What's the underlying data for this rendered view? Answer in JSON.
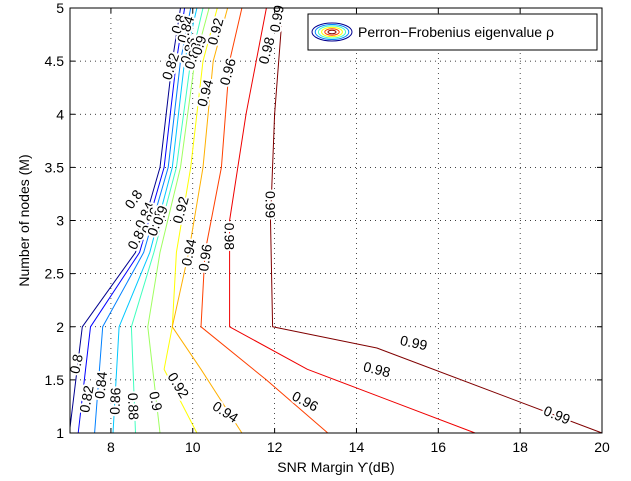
{
  "chart_data": {
    "type": "contour",
    "xlabel": "SNR Margin ϒ(dB)",
    "ylabel": "Number of nodes (M)",
    "xlim": [
      7,
      20
    ],
    "ylim": [
      1,
      5
    ],
    "x_ticks": [
      8,
      10,
      12,
      14,
      16,
      18,
      20
    ],
    "y_ticks": [
      1,
      1.5,
      2,
      2.5,
      3,
      3.5,
      4,
      4.5,
      5
    ],
    "grid": true,
    "legend": {
      "position": "top-right",
      "entries": [
        "Perron−Frobenius eigenvalue ρ"
      ]
    },
    "series": [
      {
        "level": 0.8,
        "color": "#00008f",
        "points": [
          [
            7.0,
            1.05
          ],
          [
            7.3,
            2.0
          ],
          [
            8.6,
            2.7
          ],
          [
            9.2,
            3.5
          ],
          [
            9.5,
            4.5
          ],
          [
            9.7,
            5.0
          ]
        ]
      },
      {
        "level": 0.82,
        "color": "#0000ff",
        "points": [
          [
            7.2,
            1.0
          ],
          [
            7.5,
            2.0
          ],
          [
            8.7,
            2.7
          ],
          [
            9.3,
            3.5
          ],
          [
            9.6,
            4.5
          ],
          [
            9.8,
            5.0
          ]
        ]
      },
      {
        "level": 0.84,
        "color": "#0080ff",
        "points": [
          [
            7.6,
            1.0
          ],
          [
            7.8,
            2.0
          ],
          [
            8.8,
            2.7
          ],
          [
            9.4,
            3.5
          ],
          [
            9.7,
            4.5
          ],
          [
            9.95,
            5.0
          ]
        ]
      },
      {
        "level": 0.86,
        "color": "#00c8ff",
        "points": [
          [
            8.05,
            1.0
          ],
          [
            8.2,
            2.0
          ],
          [
            8.95,
            2.7
          ],
          [
            9.5,
            3.5
          ],
          [
            9.8,
            4.5
          ],
          [
            10.1,
            5.0
          ]
        ]
      },
      {
        "level": 0.88,
        "color": "#40ffbf",
        "points": [
          [
            8.6,
            1.0
          ],
          [
            8.5,
            2.0
          ],
          [
            9.05,
            2.7
          ],
          [
            9.6,
            3.5
          ],
          [
            9.95,
            4.5
          ],
          [
            10.25,
            5.0
          ]
        ]
      },
      {
        "level": 0.9,
        "color": "#9fff60",
        "points": [
          [
            9.2,
            1.0
          ],
          [
            8.9,
            2.0
          ],
          [
            9.2,
            2.7
          ],
          [
            9.7,
            3.5
          ],
          [
            10.05,
            4.5
          ],
          [
            10.4,
            5.0
          ]
        ]
      },
      {
        "level": 0.92,
        "color": "#ffff00",
        "points": [
          [
            10.1,
            1.0
          ],
          [
            9.3,
            1.6
          ],
          [
            9.5,
            2.0
          ],
          [
            9.6,
            2.7
          ],
          [
            9.95,
            3.5
          ],
          [
            10.25,
            4.5
          ],
          [
            10.6,
            5.0
          ]
        ]
      },
      {
        "level": 0.94,
        "color": "#ffb000",
        "points": [
          [
            11.2,
            1.0
          ],
          [
            10.2,
            1.6
          ],
          [
            9.5,
            2.0
          ],
          [
            9.9,
            2.7
          ],
          [
            10.25,
            3.5
          ],
          [
            10.5,
            4.5
          ],
          [
            10.85,
            5.0
          ]
        ]
      },
      {
        "level": 0.96,
        "color": "#ff4000",
        "points": [
          [
            13.3,
            1.0
          ],
          [
            11.8,
            1.5
          ],
          [
            10.2,
            2.0
          ],
          [
            10.3,
            2.7
          ],
          [
            10.7,
            3.5
          ],
          [
            10.9,
            4.5
          ],
          [
            11.2,
            5.0
          ]
        ]
      },
      {
        "level": 0.98,
        "color": "#ef0000",
        "points": [
          [
            16.9,
            1.0
          ],
          [
            12.8,
            1.6
          ],
          [
            10.9,
            2.0
          ],
          [
            10.9,
            3.0
          ],
          [
            11.3,
            4.0
          ],
          [
            11.8,
            5.0
          ]
        ]
      },
      {
        "level": 0.99,
        "color": "#800000",
        "points": [
          [
            20.0,
            1.0
          ],
          [
            14.5,
            1.8
          ],
          [
            11.95,
            2.0
          ],
          [
            11.9,
            3.0
          ],
          [
            12.0,
            4.0
          ],
          [
            12.2,
            5.0
          ]
        ]
      }
    ],
    "labels": [
      {
        "text": "0.8",
        "x": 7.15,
        "y": 1.65,
        "rot": -78
      },
      {
        "text": "0.82",
        "x": 7.4,
        "y": 1.32,
        "rot": -80
      },
      {
        "text": "0.84",
        "x": 7.75,
        "y": 1.45,
        "rot": -84
      },
      {
        "text": "0.86",
        "x": 8.1,
        "y": 1.3,
        "rot": -88
      },
      {
        "text": "0.88",
        "x": 8.55,
        "y": 1.25,
        "rot": 88
      },
      {
        "text": "0.9",
        "x": 9.1,
        "y": 1.3,
        "rot": 78
      },
      {
        "text": "0.92",
        "x": 9.65,
        "y": 1.45,
        "rot": 58
      },
      {
        "text": "0.94",
        "x": 10.8,
        "y": 1.2,
        "rot": 33
      },
      {
        "text": "0.96",
        "x": 12.75,
        "y": 1.3,
        "rot": 28
      },
      {
        "text": "0.98",
        "x": 14.5,
        "y": 1.6,
        "rot": 14
      },
      {
        "text": "0.99",
        "x": 15.4,
        "y": 1.85,
        "rot": 12
      },
      {
        "text": "0.99",
        "x": 18.9,
        "y": 1.17,
        "rot": 22
      },
      {
        "text": "0.8",
        "x": 8.55,
        "y": 3.2,
        "rot": -55
      },
      {
        "text": "0.82",
        "x": 8.65,
        "y": 2.85,
        "rot": -62
      },
      {
        "text": "0.84",
        "x": 8.82,
        "y": 3.05,
        "rot": -65
      },
      {
        "text": "0.86",
        "x": 8.97,
        "y": 3.0,
        "rot": -68
      },
      {
        "text": "0.88",
        "x": 9.1,
        "y": 2.98,
        "rot": -70
      },
      {
        "text": "0.9",
        "x": 9.2,
        "y": 3.05,
        "rot": -70
      },
      {
        "text": "0.92",
        "x": 9.7,
        "y": 3.1,
        "rot": -75
      },
      {
        "text": "0.94",
        "x": 9.9,
        "y": 2.7,
        "rot": -78
      },
      {
        "text": "0.96",
        "x": 10.3,
        "y": 2.65,
        "rot": -82
      },
      {
        "text": "0.98",
        "x": 10.9,
        "y": 2.85,
        "rot": 90
      },
      {
        "text": "0.99",
        "x": 11.9,
        "y": 3.15,
        "rot": 90
      },
      {
        "text": "0.8",
        "x": 9.65,
        "y": 4.85,
        "rot": -72
      },
      {
        "text": "0.82",
        "x": 9.45,
        "y": 4.45,
        "rot": -72
      },
      {
        "text": "0.84",
        "x": 9.82,
        "y": 4.8,
        "rot": -72
      },
      {
        "text": "0.86",
        "x": 9.9,
        "y": 4.6,
        "rot": -72
      },
      {
        "text": "0.88",
        "x": 10.0,
        "y": 4.55,
        "rot": -72
      },
      {
        "text": "0.9",
        "x": 10.15,
        "y": 4.65,
        "rot": -72
      },
      {
        "text": "0.92",
        "x": 10.55,
        "y": 4.78,
        "rot": -75
      },
      {
        "text": "0.94",
        "x": 10.3,
        "y": 4.2,
        "rot": -75
      },
      {
        "text": "0.96",
        "x": 10.85,
        "y": 4.4,
        "rot": -75
      },
      {
        "text": "0.98",
        "x": 11.8,
        "y": 4.6,
        "rot": -75
      },
      {
        "text": "0.99",
        "x": 12.05,
        "y": 4.9,
        "rot": -80
      }
    ]
  }
}
